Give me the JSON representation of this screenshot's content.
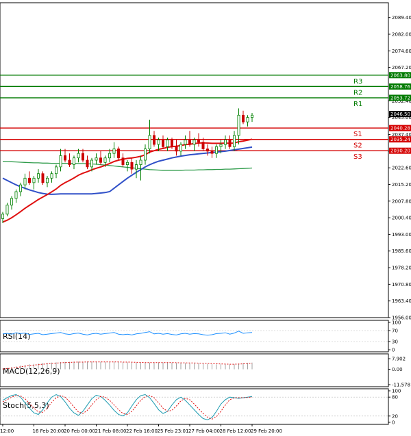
{
  "chart_data": {
    "type": "candlestick",
    "instrument_note": "",
    "main": {
      "ylim": [
        1956.0,
        2096.0
      ],
      "price_ticks": [
        "2089.40",
        "2082.00",
        "2074.60",
        "2067.20",
        "2052.40",
        "2045.00",
        "2037.40",
        "2030.00",
        "2022.60",
        "2015.20",
        "2007.80",
        "2000.40",
        "1993.00",
        "1985.60",
        "1978.20",
        "1970.80",
        "1963.40",
        "1956.00"
      ],
      "price_tick_values": [
        2089.4,
        2082.0,
        2074.6,
        2067.2,
        2052.4,
        2045.0,
        2037.4,
        2030.0,
        2022.6,
        2015.2,
        2007.8,
        2000.4,
        1993.0,
        1985.6,
        1978.2,
        1970.8,
        1963.4,
        1956.0
      ],
      "current_price": {
        "label": "2046.50",
        "value": 2046.5
      },
      "resistance": [
        {
          "name": "R3",
          "value": 2063.8,
          "label": "2063.80"
        },
        {
          "name": "R2",
          "value": 2058.76,
          "label": "2058.76"
        },
        {
          "name": "R1",
          "value": 2053.72,
          "label": "2053.72"
        }
      ],
      "support": [
        {
          "name": "S1",
          "value": 2040.28,
          "label": "2040.28"
        },
        {
          "name": "S2",
          "value": 2035.24,
          "label": "2035.24"
        },
        {
          "name": "S3",
          "value": 2030.2,
          "label": "2030.20"
        }
      ],
      "candles": [
        [
          2000,
          2003,
          1998,
          2002
        ],
        [
          2002,
          2007,
          2001,
          2006
        ],
        [
          2006,
          2010,
          2004,
          2009
        ],
        [
          2009,
          2013,
          2007,
          2012
        ],
        [
          2012,
          2016,
          2010,
          2015
        ],
        [
          2015,
          2020,
          2013,
          2018
        ],
        [
          2018,
          2021,
          2015,
          2016
        ],
        [
          2016,
          2019,
          2013,
          2018
        ],
        [
          2018,
          2022,
          2016,
          2020
        ],
        [
          2020,
          2021,
          2015,
          2016
        ],
        [
          2016,
          2019,
          2014,
          2018
        ],
        [
          2018,
          2021,
          2016,
          2020
        ],
        [
          2020,
          2024,
          2018,
          2023
        ],
        [
          2023,
          2031,
          2021,
          2028
        ],
        [
          2028,
          2031,
          2025,
          2026
        ],
        [
          2026,
          2029,
          2023,
          2024
        ],
        [
          2024,
          2028,
          2022,
          2027
        ],
        [
          2027,
          2031,
          2025,
          2029
        ],
        [
          2029,
          2031,
          2025,
          2026
        ],
        [
          2026,
          2028,
          2022,
          2023
        ],
        [
          2023,
          2027,
          2021,
          2026
        ],
        [
          2026,
          2029,
          2024,
          2027
        ],
        [
          2027,
          2030,
          2024,
          2025
        ],
        [
          2025,
          2028,
          2023,
          2027
        ],
        [
          2027,
          2031,
          2025,
          2029
        ],
        [
          2029,
          2034,
          2027,
          2031
        ],
        [
          2031,
          2032,
          2026,
          2027
        ],
        [
          2027,
          2029,
          2023,
          2024
        ],
        [
          2024,
          2026,
          2021,
          2025
        ],
        [
          2025,
          2027,
          2020,
          2022
        ],
        [
          2022,
          2026,
          2018,
          2024
        ],
        [
          2024,
          2028,
          2017,
          2026
        ],
        [
          2026,
          2033,
          2024,
          2031
        ],
        [
          2031,
          2044,
          2029,
          2037
        ],
        [
          2037,
          2039,
          2032,
          2033
        ],
        [
          2033,
          2036,
          2030,
          2035
        ],
        [
          2035,
          2037,
          2031,
          2032
        ],
        [
          2032,
          2036,
          2030,
          2035
        ],
        [
          2035,
          2036,
          2031,
          2032
        ],
        [
          2032,
          2035,
          2028,
          2030
        ],
        [
          2030,
          2034,
          2028,
          2033
        ],
        [
          2033,
          2037,
          2031,
          2035
        ],
        [
          2035,
          2039,
          2032,
          2033
        ],
        [
          2033,
          2036,
          2030,
          2035
        ],
        [
          2035,
          2038,
          2032,
          2034
        ],
        [
          2034,
          2036,
          2030,
          2031
        ],
        [
          2031,
          2033,
          2028,
          2030
        ],
        [
          2030,
          2032,
          2027,
          2029
        ],
        [
          2029,
          2033,
          2027,
          2032
        ],
        [
          2032,
          2035,
          2029,
          2033
        ],
        [
          2033,
          2037,
          2031,
          2035
        ],
        [
          2035,
          2037,
          2031,
          2032
        ],
        [
          2032,
          2039,
          2030,
          2037
        ],
        [
          2037,
          2049,
          2033,
          2046
        ],
        [
          2046,
          2048,
          2042,
          2043
        ],
        [
          2043,
          2046,
          2041,
          2045
        ],
        [
          2045,
          2047,
          2043,
          2046
        ]
      ],
      "ma_red": [
        1998.5,
        1999.3,
        2000.4,
        2001.7,
        2003.1,
        2004.6,
        2005.9,
        2007.2,
        2008.5,
        2009.6,
        2010.7,
        2011.9,
        2013.2,
        2014.8,
        2016.0,
        2017.0,
        2018.1,
        2019.3,
        2020.2,
        2020.9,
        2021.7,
        2022.4,
        2023.0,
        2023.7,
        2024.5,
        2025.4,
        2026.0,
        2026.4,
        2026.8,
        2027.0,
        2027.3,
        2027.7,
        2028.4,
        2029.6,
        2030.2,
        2030.8,
        2031.2,
        2031.7,
        2032.0,
        2032.2,
        2032.5,
        2032.9,
        2033.1,
        2033.4,
        2033.6,
        2033.7,
        2033.6,
        2033.5,
        2033.5,
        2033.5,
        2033.6,
        2033.5,
        2033.6,
        2034.2,
        2034.5,
        2034.9,
        2035.3
      ],
      "ma_blue": [
        2018.0,
        2017.0,
        2016.0,
        2015.0,
        2014.2,
        2013.5,
        2012.8,
        2012.2,
        2011.6,
        2011.2,
        2010.9,
        2010.8,
        2010.9,
        2011.0,
        2011.0,
        2011.0,
        2011.0,
        2011.0,
        2011.0,
        2011.0,
        2011.0,
        2011.2,
        2011.4,
        2011.6,
        2012.0,
        2013.5,
        2015.0,
        2016.5,
        2018.0,
        2019.3,
        2020.6,
        2021.8,
        2023.0,
        2024.0,
        2024.8,
        2025.5,
        2026.0,
        2026.5,
        2027.0,
        2027.4,
        2027.8,
        2028.1,
        2028.4,
        2028.6,
        2028.8,
        2029.0,
        2029.2,
        2029.4,
        2029.6,
        2029.8,
        2030.0,
        2030.3,
        2030.6,
        2030.9,
        2031.2,
        2031.5,
        2031.8
      ],
      "ma_green": [
        2025.5,
        2025.4,
        2025.3,
        2025.2,
        2025.1,
        2025.0,
        2024.9,
        2024.8,
        2024.8,
        2024.7,
        2024.7,
        2024.6,
        2024.6,
        2024.6,
        2024.6,
        2024.6,
        2024.6,
        2024.5,
        2024.5,
        2024.4,
        2024.3,
        2024.2,
        2024.0,
        2023.8,
        2023.6,
        2023.4,
        2023.2,
        2023.0,
        2022.8,
        2022.6,
        2022.4,
        2022.2,
        2022.0,
        2021.8,
        2021.7,
        2021.6,
        2021.5,
        2021.5,
        2021.5,
        2021.5,
        2021.5,
        2021.6,
        2021.6,
        2021.6,
        2021.7,
        2021.7,
        2021.8,
        2021.8,
        2021.9,
        2021.9,
        2022.0,
        2022.0,
        2022.1,
        2022.2,
        2022.3,
        2022.4,
        2022.5
      ]
    },
    "x_labels": [
      "12:00",
      "16 Feb 20:00",
      "20 Feb 00:00",
      "21 Feb 08:00",
      "22 Feb 16:00",
      "25 Feb 23:01",
      "27 Feb 04:00",
      "28 Feb 12:00",
      "29 Feb 20:00"
    ],
    "x_label_index": [
      0,
      7,
      14,
      21,
      28,
      35,
      42,
      49,
      56
    ],
    "rsi": {
      "label": "RSI(14)",
      "ticks": [
        "100",
        "70",
        "30",
        "0"
      ],
      "tick_values": [
        100,
        70,
        30,
        0
      ],
      "ylim": [
        0,
        100
      ],
      "values": [
        58,
        60,
        57,
        62,
        59,
        61,
        56,
        58,
        60,
        55,
        57,
        59,
        61,
        63,
        58,
        56,
        59,
        61,
        57,
        54,
        58,
        60,
        57,
        59,
        61,
        63,
        57,
        55,
        57,
        54,
        58,
        60,
        63,
        66,
        58,
        60,
        57,
        59,
        56,
        54,
        58,
        60,
        57,
        59,
        58,
        55,
        53,
        55,
        59,
        60,
        62,
        57,
        61,
        68,
        60,
        62,
        63
      ]
    },
    "macd": {
      "label": "MACD(12,26,9)",
      "ticks": [
        "7.902",
        "0.00",
        "-11.578"
      ],
      "tick_values": [
        7.902,
        0.0,
        -11.578
      ],
      "ylim": [
        -11.578,
        10.0
      ],
      "hist": [
        0.5,
        1.0,
        1.6,
        2.2,
        2.8,
        3.3,
        3.7,
        4.0,
        4.3,
        4.6,
        4.8,
        5.0,
        5.2,
        5.4,
        5.5,
        5.6,
        5.7,
        5.7,
        5.7,
        5.7,
        5.6,
        5.6,
        5.6,
        5.5,
        5.5,
        5.5,
        5.4,
        5.3,
        5.2,
        5.0,
        4.9,
        4.8,
        4.8,
        5.0,
        5.1,
        5.1,
        5.0,
        5.0,
        4.9,
        4.7,
        4.6,
        4.6,
        4.5,
        4.5,
        4.4,
        4.2,
        4.0,
        3.8,
        3.7,
        3.7,
        3.7,
        3.6,
        3.7,
        4.2,
        4.5,
        4.8,
        5.0
      ],
      "signal": [
        0.2,
        0.5,
        0.9,
        1.3,
        1.8,
        2.3,
        2.7,
        3.1,
        3.5,
        3.8,
        4.1,
        4.4,
        4.6,
        4.8,
        5.0,
        5.1,
        5.3,
        5.4,
        5.4,
        5.5,
        5.5,
        5.5,
        5.5,
        5.5,
        5.5,
        5.5,
        5.5,
        5.4,
        5.4,
        5.3,
        5.2,
        5.1,
        5.0,
        5.0,
        5.0,
        5.0,
        5.0,
        5.0,
        5.0,
        4.9,
        4.8,
        4.8,
        4.7,
        4.7,
        4.6,
        4.5,
        4.4,
        4.2,
        4.1,
        4.0,
        3.9,
        3.8,
        3.8,
        3.9,
        4.1,
        4.3,
        4.5
      ]
    },
    "stoch": {
      "label": "Stoch(5,5,3)",
      "ticks": [
        "100",
        "80",
        "20",
        "0"
      ],
      "tick_values": [
        100,
        80,
        20,
        0
      ],
      "ylim": [
        0,
        100
      ],
      "main": [
        70,
        78,
        85,
        88,
        80,
        62,
        45,
        30,
        25,
        40,
        62,
        80,
        88,
        82,
        65,
        45,
        30,
        22,
        35,
        55,
        75,
        86,
        82,
        70,
        55,
        38,
        25,
        20,
        30,
        52,
        72,
        85,
        88,
        78,
        60,
        40,
        28,
        35,
        55,
        72,
        80,
        70,
        55,
        40,
        25,
        12,
        8,
        15,
        35,
        58,
        72,
        80,
        78,
        76,
        78,
        80,
        82
      ],
      "signal": [
        65,
        72,
        80,
        85,
        84,
        75,
        60,
        45,
        33,
        32,
        45,
        63,
        78,
        85,
        80,
        66,
        48,
        33,
        28,
        38,
        55,
        72,
        82,
        80,
        70,
        55,
        40,
        28,
        25,
        35,
        52,
        70,
        82,
        85,
        78,
        62,
        45,
        35,
        38,
        52,
        68,
        76,
        72,
        58,
        43,
        28,
        16,
        10,
        18,
        35,
        55,
        72,
        78,
        78,
        78,
        79,
        80
      ]
    }
  }
}
